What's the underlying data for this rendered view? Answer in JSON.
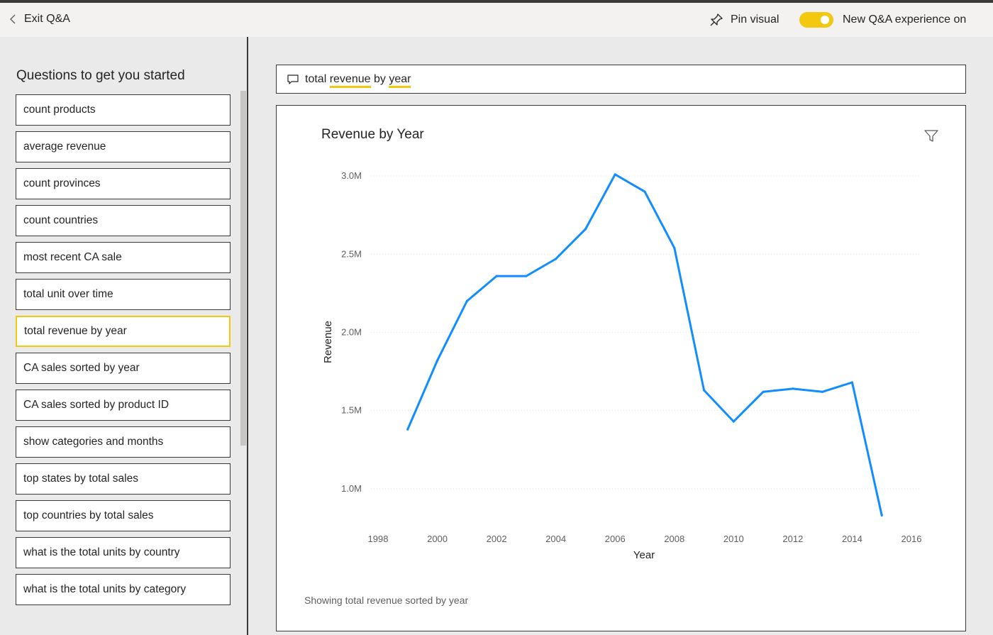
{
  "topbar": {
    "exit_label": "Exit Q&A",
    "pin_label": "Pin visual",
    "toggle_label": "New Q&A experience on",
    "toggle_on": true,
    "accent_color": "#F2C811"
  },
  "sidebar": {
    "title": "Questions to get you started",
    "questions": [
      {
        "label": "count products"
      },
      {
        "label": "average revenue"
      },
      {
        "label": "count provinces"
      },
      {
        "label": "count countries"
      },
      {
        "label": "most recent CA sale"
      },
      {
        "label": "total unit over time"
      },
      {
        "label": "total revenue by year",
        "selected": true
      },
      {
        "label": "CA sales sorted by year"
      },
      {
        "label": "CA sales sorted by product ID"
      },
      {
        "label": "show categories and months"
      },
      {
        "label": "top states by total sales"
      },
      {
        "label": "top countries by total sales"
      },
      {
        "label": "what is the total units by country"
      },
      {
        "label": "what is the total units by category"
      }
    ]
  },
  "qa": {
    "query_parts": [
      {
        "text": "total ",
        "term": false
      },
      {
        "text": "revenue",
        "term": true
      },
      {
        "text": " by ",
        "term": false
      },
      {
        "text": "year",
        "term": true
      }
    ]
  },
  "visual": {
    "caption": "Showing total revenue sorted by year"
  },
  "chart_data": {
    "type": "line",
    "title": "Revenue by Year",
    "xlabel": "Year",
    "ylabel": "Revenue",
    "x_ticks": [
      "1998",
      "2000",
      "2002",
      "2004",
      "2006",
      "2008",
      "2010",
      "2012",
      "2014",
      "2016"
    ],
    "y_ticks": [
      "1.0M",
      "1.5M",
      "2.0M",
      "2.5M",
      "3.0M"
    ],
    "xlim": [
      1998,
      2016
    ],
    "ylim": [
      0.75,
      3.1
    ],
    "y_units": "M",
    "grid": true,
    "line_color": "#118DFF",
    "series": [
      {
        "x": [
          1999,
          2000,
          2001,
          2002,
          2003,
          2004,
          2005,
          2006,
          2007,
          2008,
          2009,
          2010,
          2011,
          2012,
          2013,
          2014,
          2015
        ],
        "values": [
          1.38,
          1.82,
          2.2,
          2.36,
          2.36,
          2.47,
          2.66,
          3.01,
          2.9,
          2.54,
          1.63,
          1.43,
          1.62,
          1.64,
          1.62,
          1.68,
          0.83
        ]
      }
    ]
  }
}
